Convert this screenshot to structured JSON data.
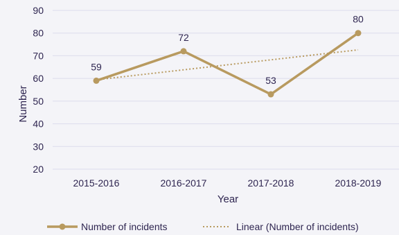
{
  "chart_data": {
    "type": "line",
    "categories": [
      "2015-2016",
      "2016-2017",
      "2017-2018",
      "2018-2019"
    ],
    "series": [
      {
        "name": "Number of incidents",
        "values": [
          59,
          72,
          53,
          80
        ],
        "color": "#b89a5f"
      }
    ],
    "trendline": {
      "name": "Linear (Number of incidents)",
      "type": "linear",
      "color": "#b89a5f"
    },
    "xlabel": "Year",
    "ylabel": "Number",
    "ylim": [
      20,
      90
    ],
    "yticks": [
      20,
      30,
      40,
      50,
      60,
      70,
      80,
      90
    ],
    "grid": true,
    "legend_position": "bottom",
    "gridline_color": "#dcdcec",
    "text_color": "#2e2550"
  }
}
